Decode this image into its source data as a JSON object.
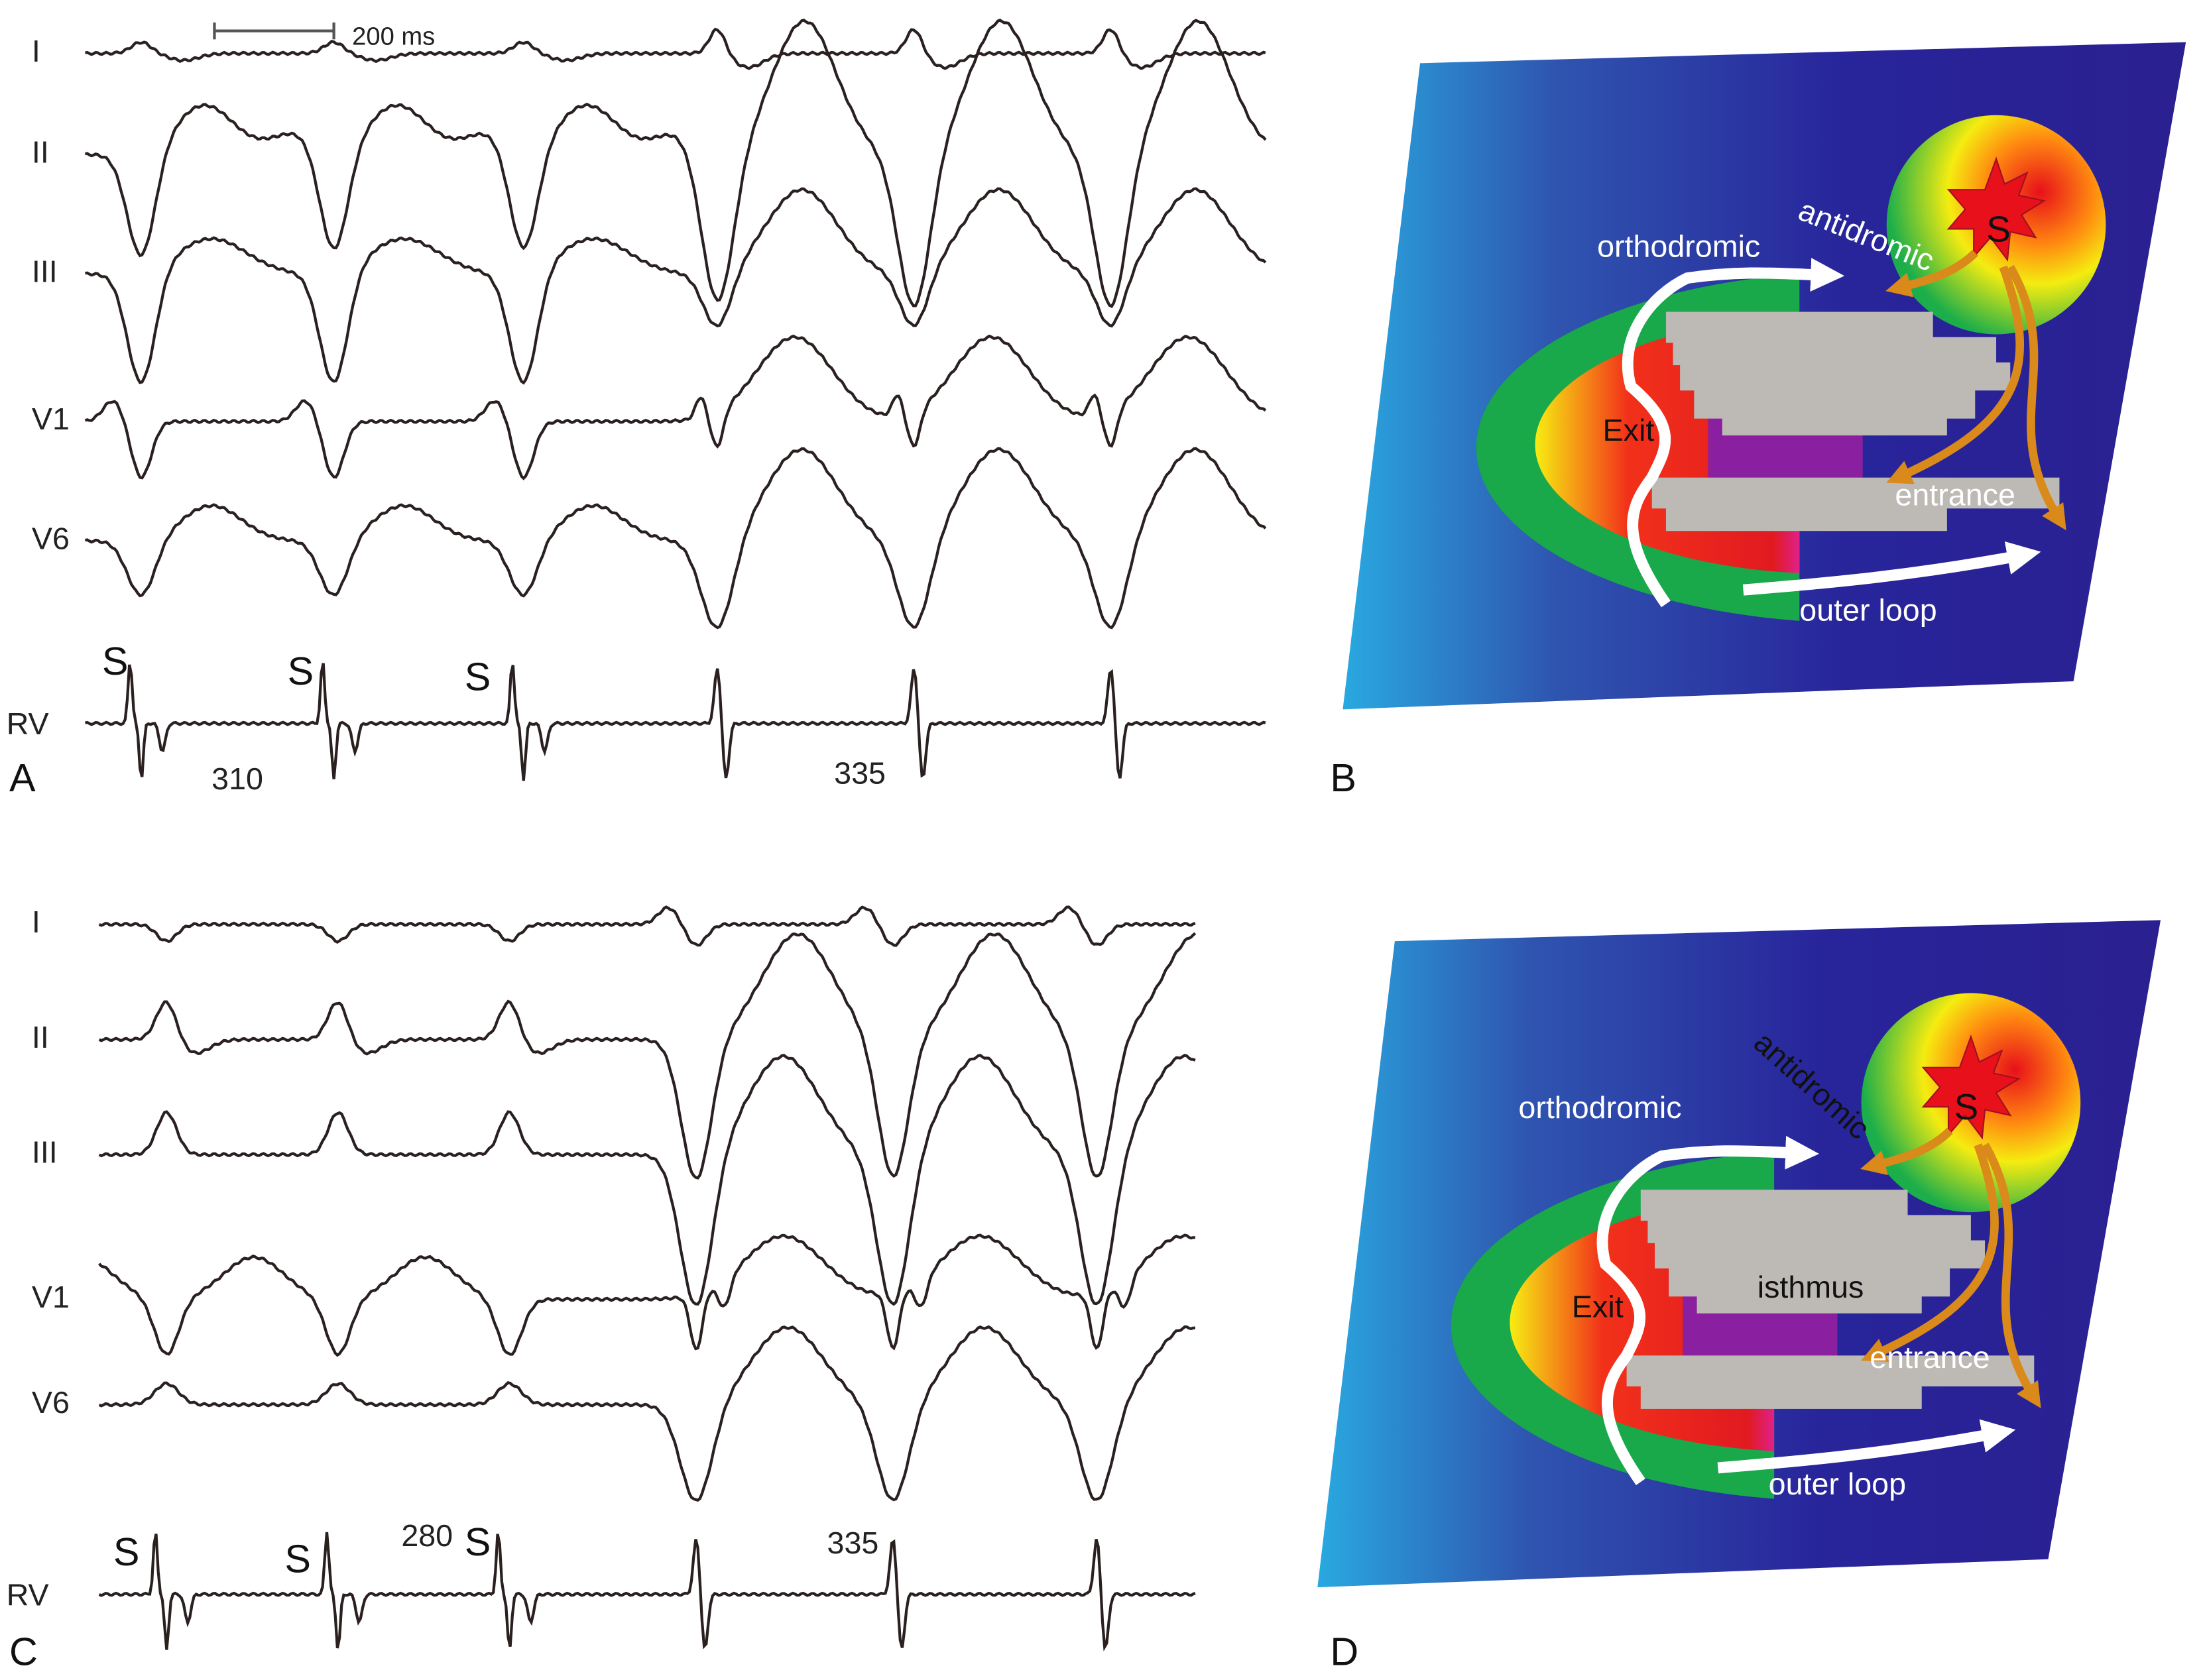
{
  "panels": [
    {
      "label": "A",
      "leads": [
        "I",
        "II",
        "III",
        "V1",
        "V6",
        "RV"
      ],
      "scale_bar": "200 ms",
      "stim_labels": [
        "S",
        "S",
        "S"
      ],
      "intervals": [
        "310",
        "335"
      ]
    },
    {
      "label": "B",
      "labels": [
        "orthodromic",
        "antidromic",
        "S",
        "Exit",
        "entrance",
        "outer loop"
      ]
    },
    {
      "label": "C",
      "leads": [
        "I",
        "II",
        "III",
        "V1",
        "V6",
        "RV"
      ],
      "stim_labels": [
        "S",
        "S",
        "S"
      ],
      "intervals": [
        "280",
        "335"
      ]
    },
    {
      "label": "D",
      "labels": [
        "orthodromic",
        "antidromic",
        "S",
        "Exit",
        "isthmus",
        "entrance",
        "outer loop"
      ]
    }
  ]
}
